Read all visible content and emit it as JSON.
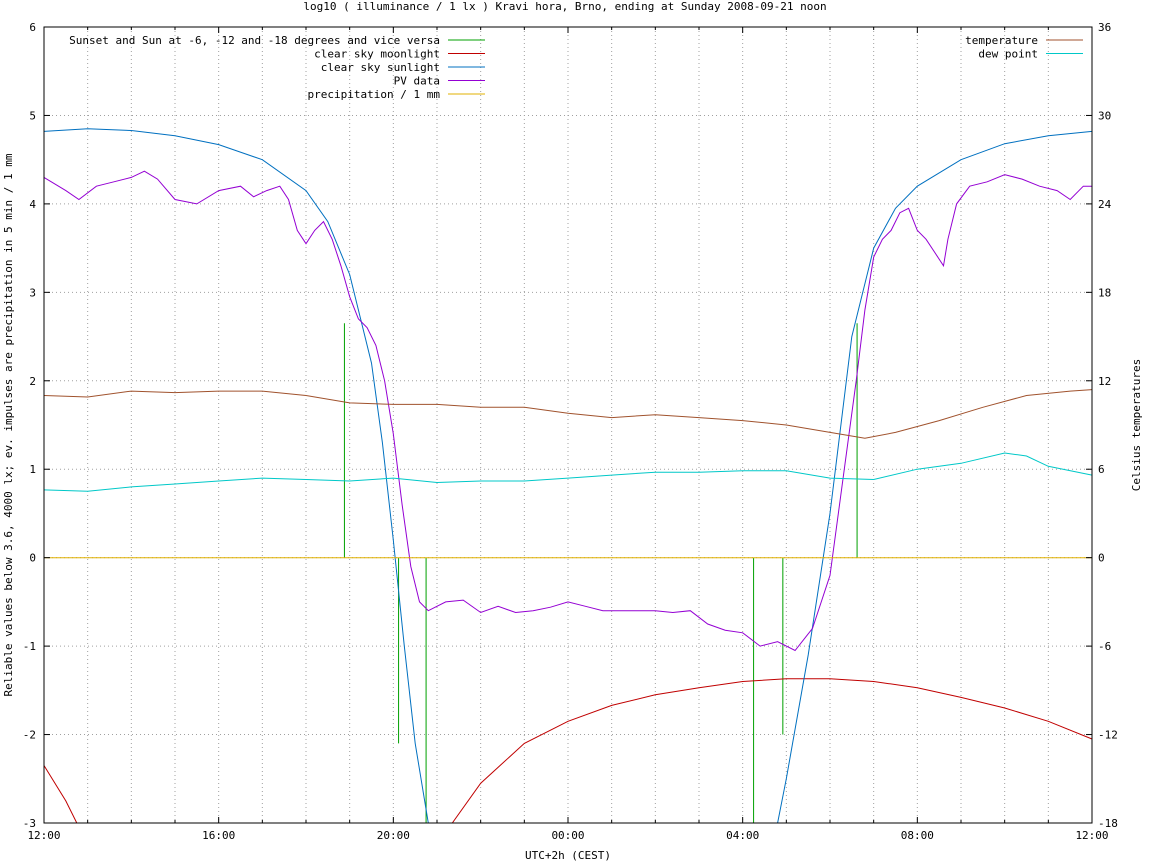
{
  "chart_data": {
    "type": "line",
    "title": "log10 ( illuminance / 1 lx ) Kravi hora, Brno, ending at Sunday 2008-09-21 noon",
    "xlabel": "UTC+2h (CEST)",
    "ylabel": "Reliable values below 3.6, 4000 lx; ev. impulses are precipitation in 5 min / 1 mm",
    "y2label": "Celsius temperatures",
    "x_range_hours": [
      0,
      24
    ],
    "xlim": [
      "12:00",
      "12:00"
    ],
    "ylim": [
      -3,
      6
    ],
    "y2lim": [
      -18,
      36
    ],
    "x_ticks": [
      {
        "h": 0,
        "label": "12:00"
      },
      {
        "h": 4,
        "label": "16:00"
      },
      {
        "h": 8,
        "label": "20:00"
      },
      {
        "h": 12,
        "label": "00:00"
      },
      {
        "h": 16,
        "label": "04:00"
      },
      {
        "h": 20,
        "label": "08:00"
      },
      {
        "h": 24,
        "label": "12:00"
      }
    ],
    "y_ticks": [
      "-3",
      "-2",
      "-1",
      "0",
      "1",
      "2",
      "3",
      "4",
      "5",
      "6"
    ],
    "y2_ticks": [
      "-18",
      "-12",
      "-6",
      "0",
      "6",
      "12",
      "18",
      "24",
      "30",
      "36"
    ],
    "grid": true,
    "legend_left": "top-left",
    "legend_right": "top-right",
    "series": [
      {
        "name": "Sunset and Sun at -6, -12 and -18 degrees and vice versa",
        "color": "#00a000",
        "kind": "impulses",
        "axis": "y",
        "impulses": [
          {
            "x": 6.88,
            "y": 2.65
          },
          {
            "x": 8.12,
            "y": -2.1
          },
          {
            "x": 8.75,
            "y": -3.0
          },
          {
            "x": 16.25,
            "y": -3.0
          },
          {
            "x": 16.92,
            "y": -2.0
          },
          {
            "x": 18.12,
            "y": 0.0
          },
          {
            "x": 18.62,
            "y": 2.65
          }
        ]
      },
      {
        "name": "clear sky moonlight",
        "color": "#c00000",
        "kind": "line",
        "axis": "y",
        "points": [
          [
            0,
            -2.35
          ],
          [
            0.5,
            -2.75
          ],
          [
            0.75,
            -3.0
          ],
          [
            9.35,
            -3.0
          ],
          [
            10,
            -2.55
          ],
          [
            11,
            -2.1
          ],
          [
            12,
            -1.85
          ],
          [
            13,
            -1.67
          ],
          [
            14,
            -1.55
          ],
          [
            15,
            -1.47
          ],
          [
            16,
            -1.4
          ],
          [
            17,
            -1.37
          ],
          [
            18,
            -1.37
          ],
          [
            19,
            -1.4
          ],
          [
            20,
            -1.47
          ],
          [
            21,
            -1.58
          ],
          [
            22,
            -1.7
          ],
          [
            23,
            -1.85
          ],
          [
            24,
            -2.05
          ]
        ]
      },
      {
        "name": "clear sky sunlight",
        "color": "#0070c0",
        "kind": "line",
        "axis": "y",
        "points": [
          [
            0,
            4.82
          ],
          [
            1,
            4.85
          ],
          [
            2,
            4.83
          ],
          [
            3,
            4.77
          ],
          [
            4,
            4.67
          ],
          [
            5,
            4.5
          ],
          [
            6,
            4.15
          ],
          [
            6.5,
            3.8
          ],
          [
            7,
            3.2
          ],
          [
            7.5,
            2.2
          ],
          [
            7.75,
            1.3
          ],
          [
            8,
            0.2
          ],
          [
            8.25,
            -1.0
          ],
          [
            8.5,
            -2.1
          ],
          [
            8.8,
            -3.0
          ],
          [
            16.8,
            -3.0
          ],
          [
            17.0,
            -2.5
          ],
          [
            17.5,
            -1.1
          ],
          [
            18,
            0.5
          ],
          [
            18.5,
            2.5
          ],
          [
            19,
            3.5
          ],
          [
            19.5,
            3.95
          ],
          [
            20,
            4.2
          ],
          [
            21,
            4.5
          ],
          [
            22,
            4.68
          ],
          [
            23,
            4.77
          ],
          [
            24,
            4.82
          ]
        ]
      },
      {
        "name": "PV data",
        "color": "#9400d3",
        "kind": "line",
        "axis": "y",
        "points": [
          [
            0,
            4.3
          ],
          [
            0.5,
            4.15
          ],
          [
            0.8,
            4.05
          ],
          [
            1.2,
            4.2
          ],
          [
            1.6,
            4.25
          ],
          [
            2,
            4.3
          ],
          [
            2.3,
            4.37
          ],
          [
            2.6,
            4.28
          ],
          [
            3,
            4.05
          ],
          [
            3.5,
            4.0
          ],
          [
            4,
            4.15
          ],
          [
            4.5,
            4.2
          ],
          [
            4.8,
            4.08
          ],
          [
            5.1,
            4.15
          ],
          [
            5.4,
            4.2
          ],
          [
            5.6,
            4.05
          ],
          [
            5.8,
            3.7
          ],
          [
            6.0,
            3.55
          ],
          [
            6.2,
            3.7
          ],
          [
            6.4,
            3.8
          ],
          [
            6.6,
            3.6
          ],
          [
            6.8,
            3.3
          ],
          [
            7.0,
            2.95
          ],
          [
            7.2,
            2.7
          ],
          [
            7.4,
            2.6
          ],
          [
            7.6,
            2.4
          ],
          [
            7.8,
            2.0
          ],
          [
            8.0,
            1.4
          ],
          [
            8.2,
            0.6
          ],
          [
            8.4,
            -0.1
          ],
          [
            8.6,
            -0.5
          ],
          [
            8.8,
            -0.6
          ],
          [
            9.2,
            -0.5
          ],
          [
            9.6,
            -0.48
          ],
          [
            10.0,
            -0.62
          ],
          [
            10.4,
            -0.55
          ],
          [
            10.8,
            -0.62
          ],
          [
            11.2,
            -0.6
          ],
          [
            11.6,
            -0.56
          ],
          [
            12.0,
            -0.5
          ],
          [
            12.4,
            -0.55
          ],
          [
            12.8,
            -0.6
          ],
          [
            13.2,
            -0.6
          ],
          [
            13.6,
            -0.6
          ],
          [
            14.0,
            -0.6
          ],
          [
            14.4,
            -0.62
          ],
          [
            14.8,
            -0.6
          ],
          [
            15.2,
            -0.75
          ],
          [
            15.6,
            -0.82
          ],
          [
            16.0,
            -0.85
          ],
          [
            16.4,
            -1.0
          ],
          [
            16.8,
            -0.95
          ],
          [
            17.2,
            -1.05
          ],
          [
            17.6,
            -0.8
          ],
          [
            18.0,
            -0.2
          ],
          [
            18.3,
            0.9
          ],
          [
            18.6,
            2.0
          ],
          [
            18.8,
            2.8
          ],
          [
            19.0,
            3.4
          ],
          [
            19.2,
            3.6
          ],
          [
            19.4,
            3.7
          ],
          [
            19.6,
            3.9
          ],
          [
            19.8,
            3.95
          ],
          [
            20.0,
            3.7
          ],
          [
            20.2,
            3.6
          ],
          [
            20.4,
            3.45
          ],
          [
            20.6,
            3.3
          ],
          [
            20.7,
            3.6
          ],
          [
            20.9,
            4.0
          ],
          [
            21.2,
            4.2
          ],
          [
            21.6,
            4.25
          ],
          [
            22.0,
            4.33
          ],
          [
            22.4,
            4.28
          ],
          [
            22.8,
            4.2
          ],
          [
            23.2,
            4.15
          ],
          [
            23.5,
            4.05
          ],
          [
            23.8,
            4.2
          ],
          [
            24.0,
            4.2
          ]
        ]
      },
      {
        "name": "precipitation / 1 mm",
        "color": "#e0b000",
        "kind": "line",
        "axis": "y",
        "points": [
          [
            0,
            0
          ],
          [
            24,
            0
          ]
        ]
      },
      {
        "name": "temperature",
        "color": "#a0522d",
        "kind": "line",
        "axis": "y2",
        "points": [
          [
            0,
            11.0
          ],
          [
            1,
            10.9
          ],
          [
            2,
            11.3
          ],
          [
            3,
            11.2
          ],
          [
            4,
            11.3
          ],
          [
            5,
            11.3
          ],
          [
            6,
            11.0
          ],
          [
            7,
            10.5
          ],
          [
            8,
            10.4
          ],
          [
            9,
            10.4
          ],
          [
            10,
            10.2
          ],
          [
            11,
            10.2
          ],
          [
            12,
            9.8
          ],
          [
            13,
            9.5
          ],
          [
            14,
            9.7
          ],
          [
            15,
            9.5
          ],
          [
            16,
            9.3
          ],
          [
            17,
            9.0
          ],
          [
            18,
            8.5
          ],
          [
            18.8,
            8.1
          ],
          [
            19.5,
            8.5
          ],
          [
            20.5,
            9.3
          ],
          [
            21.5,
            10.2
          ],
          [
            22.5,
            11.0
          ],
          [
            23.5,
            11.3
          ],
          [
            24,
            11.4
          ]
        ]
      },
      {
        "name": "dew point",
        "color": "#00c8c8",
        "kind": "line",
        "axis": "y2",
        "points": [
          [
            0,
            4.6
          ],
          [
            1,
            4.5
          ],
          [
            2,
            4.8
          ],
          [
            3,
            5.0
          ],
          [
            4,
            5.2
          ],
          [
            5,
            5.4
          ],
          [
            6,
            5.3
          ],
          [
            7,
            5.2
          ],
          [
            8,
            5.4
          ],
          [
            9,
            5.1
          ],
          [
            10,
            5.2
          ],
          [
            11,
            5.2
          ],
          [
            12,
            5.4
          ],
          [
            13,
            5.6
          ],
          [
            14,
            5.8
          ],
          [
            15,
            5.8
          ],
          [
            16,
            5.9
          ],
          [
            17,
            5.9
          ],
          [
            18,
            5.4
          ],
          [
            19,
            5.3
          ],
          [
            20,
            6.0
          ],
          [
            21,
            6.4
          ],
          [
            22,
            7.1
          ],
          [
            22.5,
            6.9
          ],
          [
            23,
            6.2
          ],
          [
            24,
            5.6
          ]
        ]
      }
    ]
  }
}
